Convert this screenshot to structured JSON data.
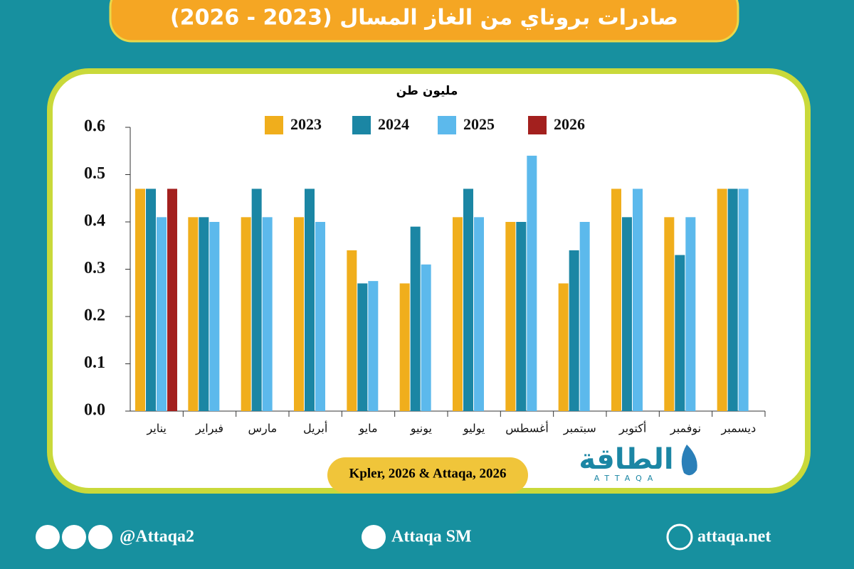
{
  "chart_data": {
    "type": "bar",
    "title": "صادرات بروناي من الغاز المسال (2023 - 2026)",
    "y_label": "مليون طن",
    "source": "Kpler, 2026 & Attaqa, 2026",
    "categories": [
      "يناير",
      "فبراير",
      "مارس",
      "أبريل",
      "مايو",
      "يونيو",
      "يوليو",
      "أغسطس",
      "سبتمبر",
      "أكتوبر",
      "نوفمبر",
      "ديسمبر"
    ],
    "series": [
      {
        "name": "2023",
        "color": "#f0ae1c",
        "values": [
          0.47,
          0.41,
          0.41,
          0.41,
          0.34,
          0.27,
          0.41,
          0.4,
          0.27,
          0.47,
          0.41,
          0.47
        ]
      },
      {
        "name": "2024",
        "color": "#1b86a4",
        "values": [
          0.47,
          0.41,
          0.47,
          0.47,
          0.27,
          0.39,
          0.47,
          0.4,
          0.34,
          0.41,
          0.33,
          0.47
        ]
      },
      {
        "name": "2025",
        "color": "#5cb9ec",
        "values": [
          0.41,
          0.4,
          0.41,
          0.4,
          0.275,
          0.31,
          0.41,
          0.54,
          0.4,
          0.47,
          0.41,
          0.47
        ]
      },
      {
        "name": "2026",
        "color": "#a3201e",
        "values": [
          0.47,
          null,
          null,
          null,
          null,
          null,
          null,
          null,
          null,
          null,
          null,
          null
        ]
      }
    ],
    "ylim": [
      0,
      0.6
    ],
    "yticks": [
      {
        "value": 0,
        "label": "0.0"
      },
      0.1,
      0.2,
      0.3,
      0.4,
      0.5,
      0.6
    ],
    "legend": "top"
  },
  "branding": {
    "logo": "الطاقة",
    "logo_sub": "ATTAQA",
    "social": "@Attaqa2",
    "youtube": "Attaqa SM",
    "website": "attaqa.net"
  }
}
